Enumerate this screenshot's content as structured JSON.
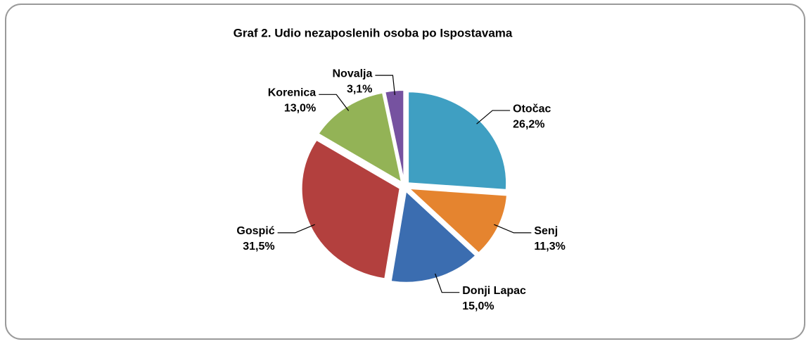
{
  "chart_data": {
    "type": "pie",
    "title": "Graf 2. Udio nezaposlenih osoba po Ispostavama",
    "categories": [
      "Otočac",
      "Senj",
      "Donji Lapac",
      "Gospić",
      "Korenica",
      "Novalja"
    ],
    "values": [
      26.2,
      11.3,
      15.0,
      31.5,
      13.0,
      3.1
    ],
    "value_labels": [
      "26,2%",
      "11,3%",
      "15,0%",
      "31,5%",
      "13,0%",
      "3,1%"
    ],
    "colors": [
      "#3f9fc2",
      "#e5842f",
      "#3b6db0",
      "#b3403e",
      "#93b356",
      "#7652a0"
    ]
  }
}
